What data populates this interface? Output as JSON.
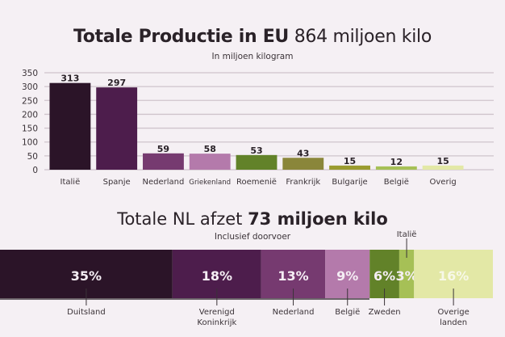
{
  "chart_data": [
    {
      "type": "bar",
      "title_bold": "Totale Productie in EU",
      "title_light": "864 miljoen kilo",
      "subtitle": "In miljoen kilogram",
      "xlabel": "",
      "ylabel": "",
      "ylim": [
        0,
        350
      ],
      "yticks": [
        0,
        50,
        100,
        150,
        200,
        250,
        300,
        350
      ],
      "grid": true,
      "categories": [
        "Italië",
        "Spanje",
        "Nederland",
        "Griekenland",
        "Roemenië",
        "Frankrijk",
        "Bulgarije",
        "België",
        "Overig"
      ],
      "values": [
        313,
        297,
        59,
        58,
        53,
        43,
        15,
        12,
        15
      ],
      "colors": [
        "#2b1428",
        "#4d1d4c",
        "#763a70",
        "#b47aab",
        "#628229",
        "#8a863a",
        "#9a9b2f",
        "#a6c056",
        "#e3e8a6"
      ]
    },
    {
      "type": "bar",
      "orientation": "stacked-horizontal-100",
      "title_light": "Totale NL afzet",
      "title_bold": "73 miljoen kilo",
      "subtitle": "Inclusief doorvoer",
      "categories": [
        "Duitsland",
        "Verenigd Koninkrijk",
        "Nederland",
        "België",
        "Zweden",
        "Italië",
        "Overige landen"
      ],
      "label_lines": [
        [
          "Duitsland"
        ],
        [
          "Verenigd",
          "Koninkrijk"
        ],
        [
          "Nederland"
        ],
        [
          "België"
        ],
        [
          "Zweden"
        ],
        [
          "Italië"
        ],
        [
          "Overige",
          "landen"
        ]
      ],
      "label_position": [
        "below",
        "below",
        "below",
        "below",
        "below",
        "above",
        "below"
      ],
      "values": [
        35,
        18,
        13,
        9,
        6,
        3,
        16
      ],
      "value_labels": [
        "35%",
        "18%",
        "13%",
        "9%",
        "6%",
        "3%",
        "16%"
      ],
      "unit": "%",
      "colors": [
        "#2b1428",
        "#4d1d4c",
        "#763a70",
        "#b47aab",
        "#628229",
        "#a6c056",
        "#e3e8a6"
      ]
    }
  ]
}
